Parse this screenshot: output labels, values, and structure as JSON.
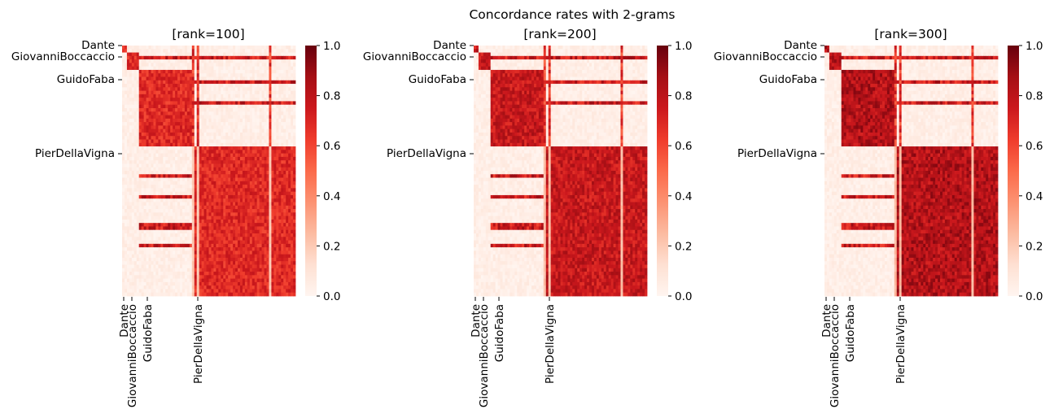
{
  "chart_data": {
    "type": "heatmap",
    "title": "Concordance rates with 2-grams",
    "panels": [
      {
        "title": "[rank=100]",
        "rank": 100,
        "cluster_strength": 0.78
      },
      {
        "title": "[rank=200]",
        "rank": 200,
        "cluster_strength": 0.88
      },
      {
        "title": "[rank=300]",
        "rank": 300,
        "cluster_strength": 0.94
      }
    ],
    "tick_labels": [
      "Dante",
      "GiovanniBoccaccio",
      "GuidoFaba",
      "PierDellaVigna"
    ],
    "groups": [
      {
        "name": "Dante",
        "fraction": 0.03
      },
      {
        "name": "GiovanniBoccaccio",
        "fraction": 0.07
      },
      {
        "name": "GuidoFaba",
        "fraction": 0.3
      },
      {
        "name": "PierDellaVigna",
        "fraction": 0.6
      }
    ],
    "colorbar": {
      "vmin": 0.0,
      "vmax": 1.0,
      "ticks": [
        "0.0",
        "0.2",
        "0.4",
        "0.6",
        "0.8",
        "1.0"
      ],
      "colormap": "Reds",
      "low_color": "#fff5f0",
      "high_color": "#67000d"
    }
  }
}
